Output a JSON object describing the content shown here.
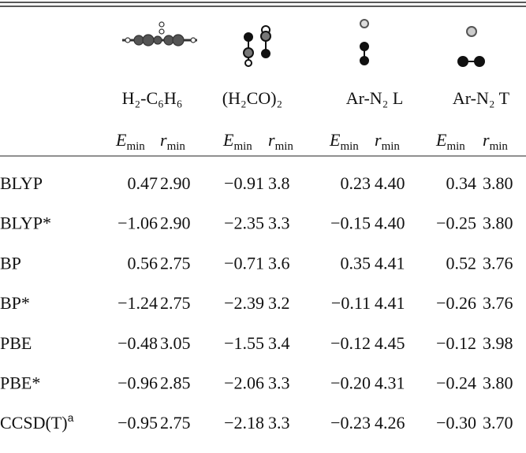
{
  "header": {
    "molecules": [
      "H₂-C₆H₆",
      "(H₂CO)₂",
      "Ar-N₂ L",
      "Ar-N₂ T"
    ],
    "columns": [
      {
        "symbol": "E",
        "sub": "min"
      },
      {
        "symbol": "r",
        "sub": "min"
      },
      {
        "symbol": "E",
        "sub": "min"
      },
      {
        "symbol": "r",
        "sub": "min"
      },
      {
        "symbol": "E",
        "sub": "min"
      },
      {
        "symbol": "r",
        "sub": "min"
      },
      {
        "symbol": "E",
        "sub": "min"
      },
      {
        "symbol": "r",
        "sub": "min"
      }
    ]
  },
  "rows": [
    {
      "method": "BLYP",
      "values": [
        "0.47",
        "2.90",
        "−0.91",
        "3.8",
        "0.23",
        "4.40",
        "0.34",
        "3.80"
      ]
    },
    {
      "method": "BLYP*",
      "values": [
        "−1.06",
        "2.90",
        "−2.35",
        "3.3",
        "−0.15",
        "4.40",
        "−0.25",
        "3.80"
      ]
    },
    {
      "method": "BP",
      "values": [
        "0.56",
        "2.75",
        "−0.71",
        "3.6",
        "0.35",
        "4.41",
        "0.52",
        "3.76"
      ]
    },
    {
      "method": "BP*",
      "values": [
        "−1.24",
        "2.75",
        "−2.39",
        "3.2",
        "−0.11",
        "4.41",
        "−0.26",
        "3.76"
      ]
    },
    {
      "method": "PBE",
      "values": [
        "−0.48",
        "3.05",
        "−1.55",
        "3.4",
        "−0.12",
        "4.45",
        "−0.12",
        "3.98"
      ]
    },
    {
      "method": "PBE*",
      "values": [
        "−0.96",
        "2.85",
        "−2.06",
        "3.3",
        "−0.20",
        "4.31",
        "−0.24",
        "3.80"
      ]
    },
    {
      "method": "CCSD(T)",
      "footnote": "a",
      "values": [
        "−0.95",
        "2.75",
        "−2.18",
        "3.3",
        "−0.23",
        "4.26",
        "−0.30",
        "3.70"
      ]
    }
  ]
}
